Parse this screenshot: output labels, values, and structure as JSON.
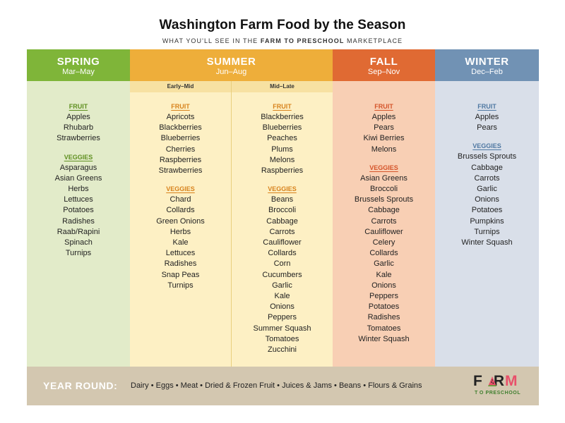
{
  "header": {
    "title": "Washington Farm Food by the Season",
    "subtitle_pre": "WHAT YOU'LL SEE IN THE ",
    "subtitle_bold": "FARM TO PRESCHOOL",
    "subtitle_post": " MARKETPLACE"
  },
  "seasons": {
    "spring": {
      "name": "SPRING",
      "range": "Mar–May",
      "fruit_label": "FRUIT",
      "fruit": [
        "Apples",
        "Rhubarb",
        "Strawberries"
      ],
      "veggies_label": "VEGGIES",
      "veggies": [
        "Asparagus",
        "Asian Greens",
        "Herbs",
        "Lettuces",
        "Potatoes",
        "Radishes",
        "Raab/Rapini",
        "Spinach",
        "Turnips"
      ]
    },
    "summer": {
      "name": "SUMMER",
      "range": "Jun–Aug",
      "early": {
        "label": "Early–Mid",
        "fruit_label": "FRUIT",
        "fruit": [
          "Apricots",
          "Blackberries",
          "Blueberries",
          "Cherries",
          "Raspberries",
          "Strawberries"
        ],
        "veggies_label": "VEGGIES",
        "veggies": [
          "Chard",
          "Collards",
          "Green Onions",
          "Herbs",
          "Kale",
          "Lettuces",
          "Radishes",
          "Snap Peas",
          "Turnips"
        ]
      },
      "late": {
        "label": "Mid–Late",
        "fruit_label": "FRUIT",
        "fruit": [
          "Blackberries",
          "Blueberries",
          "Peaches",
          "Plums",
          "Melons",
          "Raspberries"
        ],
        "veggies_label": "VEGGIES",
        "veggies": [
          "Beans",
          "Broccoli",
          "Cabbage",
          "Carrots",
          "Cauliflower",
          "Collards",
          "Corn",
          "Cucumbers",
          "Garlic",
          "Kale",
          "Onions",
          "Peppers",
          "Summer Squash",
          "Tomatoes",
          "Zucchini"
        ]
      }
    },
    "fall": {
      "name": "FALL",
      "range": "Sep–Nov",
      "fruit_label": "FRUIT",
      "fruit": [
        "Apples",
        "Pears",
        "Kiwi Berries",
        "Melons"
      ],
      "veggies_label": "VEGGIES",
      "veggies": [
        "Asian Greens",
        "Broccoli",
        "Brussels Sprouts",
        "Cabbage",
        "Carrots",
        "Cauliflower",
        "Celery",
        "Collards",
        "Garlic",
        "Kale",
        "Onions",
        "Peppers",
        "Potatoes",
        "Radishes",
        "Tomatoes",
        "Winter Squash"
      ]
    },
    "winter": {
      "name": "WINTER",
      "range": "Dec–Feb",
      "fruit_label": "FRUIT",
      "fruit": [
        "Apples",
        "Pears"
      ],
      "veggies_label": "VEGGIES",
      "veggies": [
        "Brussels Sprouts",
        "Cabbage",
        "Carrots",
        "Garlic",
        "Onions",
        "Potatoes",
        "Pumpkins",
        "Turnips",
        "Winter Squash"
      ]
    }
  },
  "year_round": {
    "label": "YEAR ROUND:",
    "items": "Dairy • Eggs • Meat • Dried & Frozen Fruit • Juices & Jams • Beans • Flours & Grains"
  },
  "logo": {
    "word_f": "F",
    "word_r": "R",
    "word_m": "M",
    "sub": "T O PRESCHOOL",
    "icon": "watermelon-slice-icon"
  },
  "colors": {
    "spring": "#7fb539",
    "summer": "#eeae3a",
    "fall": "#e06a33",
    "winter": "#7192b4",
    "year_round_bar": "#d3c7b0"
  }
}
